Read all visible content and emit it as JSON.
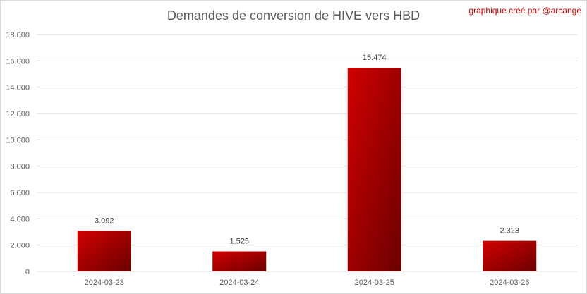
{
  "chart_data": {
    "type": "bar",
    "title": "Demandes de conversion de HIVE vers HBD",
    "credit": "graphique créé par @arcange",
    "categories": [
      "2024-03-23",
      "2024-03-24",
      "2024-03-25",
      "2024-03-26"
    ],
    "values": [
      3092,
      1525,
      15474,
      2323
    ],
    "value_labels": [
      "3.092",
      "1.525",
      "15.474",
      "2.323"
    ],
    "ylim": [
      0,
      18000
    ],
    "y_ticks": [
      0,
      2000,
      4000,
      6000,
      8000,
      10000,
      12000,
      14000,
      16000,
      18000
    ],
    "y_tick_labels": [
      "0",
      "2.000",
      "4.000",
      "6.000",
      "8.000",
      "10.000",
      "12.000",
      "14.000",
      "16.000",
      "18.000"
    ],
    "grid": true,
    "legend": "none",
    "colors": {
      "bar_light": "#d10000",
      "bar_dark": "#6b0000",
      "grid": "#d9d9d9"
    }
  }
}
